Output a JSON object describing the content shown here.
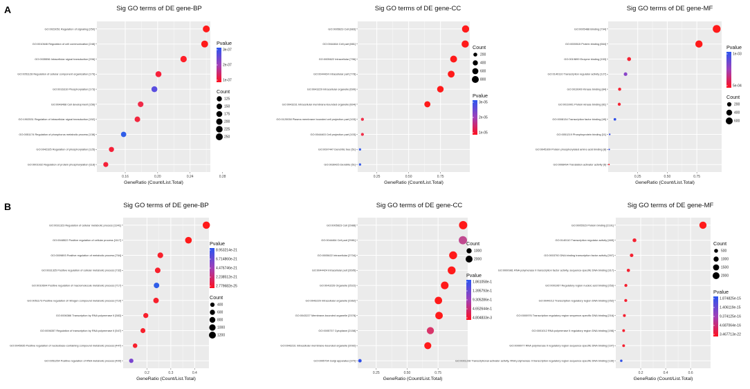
{
  "panel_labels": [
    "A",
    "B"
  ],
  "chart_data": [
    {
      "type": "scatter",
      "title": "Sig GO terms of DE gene-BP",
      "xlabel": "GeneRatio (Count/List.Total)",
      "xlim": [
        0.125,
        0.265
      ],
      "xticks": [
        0.16,
        0.2,
        0.24,
        0.28
      ],
      "xtick_labels": [
        "0.16",
        "0.20",
        "0.24",
        "0.28"
      ],
      "terms": [
        {
          "label": "GO:0023051 Regulation of signaling [250]",
          "x": 0.26,
          "count": 250,
          "color": "#ff1a1a"
        },
        {
          "label": "GO:0010646 Regulation of cell communication [248]",
          "x": 0.258,
          "count": 248,
          "color": "#ff1a1a"
        },
        {
          "label": "GO:0035556 Intracellular signal transduction [206]",
          "x": 0.232,
          "count": 206,
          "color": "#ff1f28"
        },
        {
          "label": "GO:0051128 Regulation of cellular component organization [179]",
          "x": 0.201,
          "count": 179,
          "color": "#f8203a"
        },
        {
          "label": "GO:0016310 Phosphorylation [173]",
          "x": 0.196,
          "count": 173,
          "color": "#5a4ee0"
        },
        {
          "label": "GO:0048468 Cell development [156]",
          "x": 0.179,
          "count": 156,
          "color": "#f02a48"
        },
        {
          "label": "GO:1902531 Regulation of intracellular signal transduction [152]",
          "x": 0.175,
          "count": 152,
          "color": "#f2263e"
        },
        {
          "label": "GO:0051174 Regulation of phosphorus metabolic process [138]",
          "x": 0.158,
          "count": 138,
          "color": "#2f5de8"
        },
        {
          "label": "GO:0042325 Regulation of phosphorylation [125]",
          "x": 0.143,
          "count": 125,
          "color": "#f52038"
        },
        {
          "label": "GO:0001932 Regulation of protein phosphorylation [118]",
          "x": 0.136,
          "count": 118,
          "color": "#f52038"
        }
      ],
      "legend": {
        "pvalue_title": "Pvalue",
        "pvalue_labels": [
          "3e-07",
          "2e-07",
          "1e-07"
        ],
        "count_title": "Count",
        "count_labels": [
          "125",
          "150",
          "175",
          "200",
          "225",
          "250"
        ],
        "count_values": [
          125,
          150,
          175,
          200,
          225,
          250
        ]
      }
    },
    {
      "type": "scatter",
      "title": "Sig GO terms of DE gene-CC",
      "xlabel": "GeneRatio (Count/List.Total)",
      "xlim": [
        0.1,
        0.98
      ],
      "xticks": [
        0.25,
        0.5,
        0.75
      ],
      "xtick_labels": [
        "0.25",
        "0.50",
        "0.75"
      ],
      "terms": [
        {
          "label": "GO:0005623 Cell [883]",
          "x": 0.947,
          "count": 883,
          "color": "#ff1a1a"
        },
        {
          "label": "GO:0044464 Cell part [881]",
          "x": 0.944,
          "count": 881,
          "color": "#ff1a1a"
        },
        {
          "label": "GO:0005622 Intracellular [796]",
          "x": 0.853,
          "count": 796,
          "color": "#ff1a1a"
        },
        {
          "label": "GO:0044424 Intracellular part [778]",
          "x": 0.834,
          "count": 778,
          "color": "#ff1a1a"
        },
        {
          "label": "GO:0043229 Intracellular organelle [699]",
          "x": 0.749,
          "count": 699,
          "color": "#ff1a1a"
        },
        {
          "label": "GO:0043231 Intracellular membrane-bounded organelle [604]",
          "x": 0.647,
          "count": 604,
          "color": "#ff1a1a"
        },
        {
          "label": "GO:0120038 Plasma membrane bounded cell projection part [103]",
          "x": 0.137,
          "count": 103,
          "color": "#f0304a"
        },
        {
          "label": "GO:0044463 Cell projection part [103]",
          "x": 0.137,
          "count": 103,
          "color": "#f0304a"
        },
        {
          "label": "GO:0097447 Dendritic tree [51]",
          "x": 0.118,
          "count": 51,
          "color": "#3a5ee8"
        },
        {
          "label": "GO:0030425 Dendrite [51]",
          "x": 0.118,
          "count": 51,
          "color": "#3a5ee8"
        }
      ],
      "legend": {
        "pvalue_title": "Pvalue",
        "pvalue_labels": [
          "3e-05",
          "2e-05",
          "1e-05"
        ],
        "count_title": "Count",
        "count_labels": [
          "200",
          "400",
          "600",
          "800"
        ],
        "count_values": [
          200,
          400,
          600,
          800
        ]
      }
    },
    {
      "type": "scatter",
      "title": "Sig GO terms of DE gene-MF",
      "xlabel": "GeneRatio (Count/List.Total)",
      "xlim": [
        0.0,
        0.96
      ],
      "xticks": [
        0.25,
        0.5,
        0.75
      ],
      "xtick_labels": [
        "0.25",
        "0.50",
        "0.75"
      ],
      "terms": [
        {
          "label": "GO:0005488 Binding [794]",
          "x": 0.918,
          "count": 794,
          "color": "#ff1a1a"
        },
        {
          "label": "GO:0005515 Protein binding [664]",
          "x": 0.768,
          "count": 664,
          "color": "#ff1a1a"
        },
        {
          "label": "GO:0019899 Enzyme binding [153]",
          "x": 0.177,
          "count": 153,
          "color": "#f52535"
        },
        {
          "label": "GO:0140110 Transcription regulator activity [127]",
          "x": 0.147,
          "count": 127,
          "color": "#8a45c8"
        },
        {
          "label": "GO:0019900 Kinase binding [84]",
          "x": 0.097,
          "count": 84,
          "color": "#f52535"
        },
        {
          "label": "GO:0019901 Protein kinase binding [81]",
          "x": 0.094,
          "count": 81,
          "color": "#f52535"
        },
        {
          "label": "GO:0008134 Transcription factor binding [49]",
          "x": 0.057,
          "count": 49,
          "color": "#3050e8"
        },
        {
          "label": "GO:0051219 Phosphoprotein binding [11]",
          "x": 0.013,
          "count": 11,
          "color": "#3a50e0"
        },
        {
          "label": "GO:0045309 Protein phosphorylated amino acid binding [8]",
          "x": 0.009,
          "count": 8,
          "color": "#3a50e0"
        },
        {
          "label": "GO:0008494 Translation activator activity [6]",
          "x": 0.007,
          "count": 6,
          "color": "#f52535"
        }
      ],
      "legend": {
        "pvalue_title": "Pvalue",
        "pvalue_labels": [
          "1e-03",
          "5e-04"
        ],
        "count_title": "Count",
        "count_labels": [
          "200",
          "400",
          "600"
        ],
        "count_values": [
          200,
          400,
          600
        ]
      }
    },
    {
      "type": "scatter",
      "title": "Sig GO terms of DE gene-BP",
      "xlabel": "GeneRatio (Count/List.Total)",
      "xlim": [
        0.1,
        0.46
      ],
      "xticks": [
        0.2,
        0.3,
        0.4
      ],
      "xtick_labels": [
        "0.2",
        "0.3",
        "0.4"
      ],
      "terms": [
        {
          "label": "GO:0031323 Regulation of cellular metabolic process [1341]",
          "x": 0.449,
          "count": 1341,
          "color": "#ff1a1a"
        },
        {
          "label": "GO:0048522 Positive regulation of cellular process [1117]",
          "x": 0.374,
          "count": 1117,
          "color": "#ff1a1a"
        },
        {
          "label": "GO:0009893 Positive regulation of metabolic process [764]",
          "x": 0.256,
          "count": 764,
          "color": "#f8202c"
        },
        {
          "label": "GO:0031325 Positive regulation of cellular metabolic process [732]",
          "x": 0.245,
          "count": 732,
          "color": "#f8202c"
        },
        {
          "label": "GO:0010604 Positive regulation of macromolecule metabolic process [717]",
          "x": 0.24,
          "count": 717,
          "color": "#2f5de8"
        },
        {
          "label": "GO:0051173 Positive regulation of nitrogen compound metabolic process [710]",
          "x": 0.238,
          "count": 710,
          "color": "#f8202c"
        },
        {
          "label": "GO:0006366 Transcription by RNA polymerase II [582]",
          "x": 0.195,
          "count": 582,
          "color": "#f8202c"
        },
        {
          "label": "GO:0006357 Regulation of transcription by RNA polymerase II [547]",
          "x": 0.183,
          "count": 547,
          "color": "#f8202c"
        },
        {
          "label": "GO:0045935 Positive regulation of nucleobase-containing compound metabolic process [447]",
          "x": 0.15,
          "count": 447,
          "color": "#f8202c"
        },
        {
          "label": "GO:0051254 Positive regulation of RNA metabolic process [400]",
          "x": 0.134,
          "count": 400,
          "color": "#7a45d0"
        }
      ],
      "legend": {
        "pvalue_title": "Pvalue",
        "pvalue_labels": [
          "8.953214e-21",
          "6.714860e-21",
          "4.476746e-21",
          "2.238512e-21",
          "2.779682e-25"
        ],
        "count_title": "Count",
        "count_labels": [
          "400",
          "600",
          "800",
          "1000",
          "1200"
        ],
        "count_values": [
          400,
          600,
          800,
          1000,
          1200
        ]
      }
    },
    {
      "type": "scatter",
      "title": "Sig GO terms of DE gene-CC",
      "xlabel": "GeneRatio (Count/List.Total)",
      "xlim": [
        0.1,
        0.99
      ],
      "xticks": [
        0.25,
        0.5,
        0.75
      ],
      "xtick_labels": [
        "0.25",
        "0.50",
        "0.75"
      ],
      "terms": [
        {
          "label": "GO:0005623 Cell [2988]",
          "x": 0.953,
          "count": 2988,
          "color": "#ff1a1a"
        },
        {
          "label": "GO:0044464 Cell part [2981]",
          "x": 0.951,
          "count": 2981,
          "color": "#c04a90"
        },
        {
          "label": "GO:0005622 Intracellular [2734]",
          "x": 0.872,
          "count": 2734,
          "color": "#ff1a1a"
        },
        {
          "label": "GO:0044424 Intracellular part [2695]",
          "x": 0.86,
          "count": 2695,
          "color": "#ff1a1a"
        },
        {
          "label": "GO:0043226 Organelle [2522]",
          "x": 0.804,
          "count": 2522,
          "color": "#ff1a1a"
        },
        {
          "label": "GO:0043229 Intracellular organelle [2362]",
          "x": 0.753,
          "count": 2362,
          "color": "#ff1a1a"
        },
        {
          "label": "GO:0043227 Membrane-bounded organelle [2378]",
          "x": 0.758,
          "count": 2378,
          "color": "#ff1a1a"
        },
        {
          "label": "GO:0005737 Cytoplasm [2158]",
          "x": 0.688,
          "count": 2158,
          "color": "#d8356a"
        },
        {
          "label": "GO:0043231 Intracellular membrane-bounded organelle [2092]",
          "x": 0.667,
          "count": 2092,
          "color": "#ff1a1a"
        },
        {
          "label": "GO:0005794 Golgi apparatus [370]",
          "x": 0.118,
          "count": 370,
          "color": "#3050e8"
        }
      ],
      "legend": {
        "pvalue_title": "Pvalue",
        "pvalue_labels": [
          "1.861058e-1",
          "1.395793e-1",
          "9.305286e-1",
          "4.652644e-1",
          "4.804833e-3"
        ],
        "count_title": "Count",
        "count_labels": [
          "1000",
          "2000"
        ],
        "count_values": [
          1000,
          2000
        ]
      }
    },
    {
      "type": "scatter",
      "title": "Sig GO terms of DE gene-MF",
      "xlabel": "GeneRatio (Count/List.Total)",
      "xlim": [
        0.0,
        0.76
      ],
      "xticks": [
        0.2,
        0.4,
        0.6
      ],
      "xtick_labels": [
        "0.2",
        "0.4",
        "0.6"
      ],
      "terms": [
        {
          "label": "GO:0005515 Protein binding [2191]",
          "x": 0.699,
          "count": 2191,
          "color": "#ff1a1a"
        },
        {
          "label": "GO:0140110 Transcription regulator activity [469]",
          "x": 0.15,
          "count": 469,
          "color": "#f52030"
        },
        {
          "label": "GO:0003700 DNA binding transcription factor activity [397]",
          "x": 0.127,
          "count": 397,
          "color": "#f52030"
        },
        {
          "label": "GO:0000981 RNA polymerase II transcription factor activity, sequence-specific DNA binding [317]",
          "x": 0.101,
          "count": 317,
          "color": "#f52030"
        },
        {
          "label": "GO:0001067 Regulatory region nucleic acid binding [253]",
          "x": 0.081,
          "count": 253,
          "color": "#f52030"
        },
        {
          "label": "GO:0044212 Transcription regulatory region DNA binding [252]",
          "x": 0.08,
          "count": 252,
          "color": "#f52030"
        },
        {
          "label": "GO:0000976 Transcription regulatory region sequence-specific DNA binding [216]",
          "x": 0.069,
          "count": 216,
          "color": "#f52030"
        },
        {
          "label": "GO:0001012 RNA polymerase II regulatory region DNA binding [198]",
          "x": 0.063,
          "count": 198,
          "color": "#f52030"
        },
        {
          "label": "GO:0000977 RNA polymerase II regulatory region sequence-specific DNA binding [197]",
          "x": 0.063,
          "count": 197,
          "color": "#f52030"
        },
        {
          "label": "GO:0001228 Transcriptional activator activity, RNA polymerase II transcription regulatory region sequence-specific DNA binding [139]",
          "x": 0.044,
          "count": 139,
          "color": "#3050e8"
        }
      ],
      "legend": {
        "pvalue_title": "Pvalue",
        "pvalue_labels": [
          "1.874825e-15",
          "1.406119e-15",
          "9.374125e-16",
          "4.687064e-16",
          "3.467713e-22"
        ],
        "count_title": "Count",
        "count_labels": [
          "500",
          "1000",
          "1500",
          "2000"
        ],
        "count_values": [
          500,
          1000,
          1500,
          2000
        ]
      }
    }
  ]
}
